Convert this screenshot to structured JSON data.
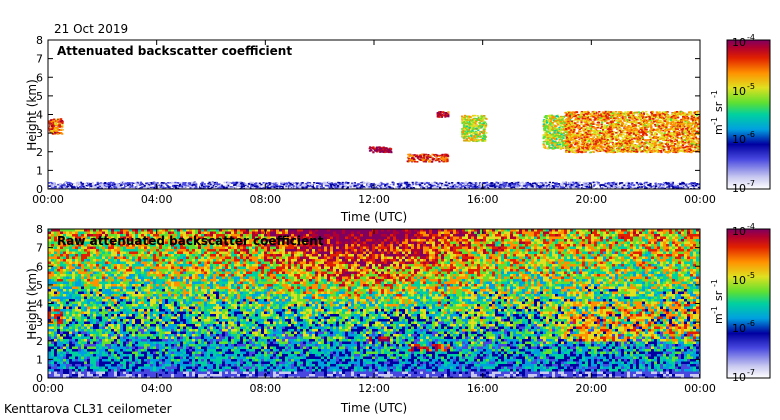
{
  "header": {
    "date": "21 Oct 2019"
  },
  "footer": {
    "site": "Kenttarova CL31 ceilometer"
  },
  "colorscale": [
    "#ffffff",
    "#c8c8f0",
    "#4848e0",
    "#0000a0",
    "#00a0e0",
    "#00d0a0",
    "#60e030",
    "#e0e020",
    "#ff9000",
    "#e02000",
    "#b00030",
    "#800060"
  ],
  "chart_data": [
    {
      "type": "heatmap",
      "title": "Attenuated backscatter coefficient",
      "xlabel": "Time (UTC)",
      "ylabel": "Height (km)",
      "xticks": [
        "00:00",
        "04:00",
        "08:00",
        "12:00",
        "16:00",
        "20:00",
        "00:00"
      ],
      "xlim_hours": [
        0,
        24
      ],
      "ylim": [
        0,
        8
      ],
      "yticks": [
        "0",
        "1",
        "2",
        "3",
        "4",
        "5",
        "6",
        "7",
        "8"
      ],
      "colorbar": {
        "min": "10",
        "min_exp": "-7",
        "max": "10",
        "max_exp": "-4",
        "mid1": "10",
        "mid1_exp": "-6",
        "mid2": "10",
        "mid2_exp": "-5",
        "log": true,
        "unit": "m",
        "unit_exp": "-1",
        "unit2": "sr",
        "unit2_exp": "-1"
      },
      "features": [
        {
          "name": "surface noise layer",
          "t": [
            0,
            24
          ],
          "h": [
            0,
            0.4
          ],
          "level": 0.2
        },
        {
          "name": "early cloud",
          "t": [
            0,
            0.5
          ],
          "h": [
            3.0,
            3.8
          ],
          "level": 0.75
        },
        {
          "name": "cloud layer 12h",
          "t": [
            11.8,
            12.6
          ],
          "h": [
            2.0,
            2.3
          ],
          "level": 0.9
        },
        {
          "name": "cloud layer 14h",
          "t": [
            13.2,
            14.7
          ],
          "h": [
            1.5,
            1.9
          ],
          "level": 0.8
        },
        {
          "name": "cloud 14.5h",
          "t": [
            14.3,
            14.7
          ],
          "h": [
            3.9,
            4.2
          ],
          "level": 0.85
        },
        {
          "name": "falling streak 15-16h",
          "t": [
            15.2,
            16.1
          ],
          "h": [
            2.6,
            4.0
          ],
          "level": 0.6
        },
        {
          "name": "falling streak 18-19h",
          "t": [
            18.2,
            19.2
          ],
          "h": [
            2.2,
            4.0
          ],
          "level": 0.6
        },
        {
          "name": "cloud deck 19-24h",
          "t": [
            19.0,
            24
          ],
          "h": [
            2.0,
            4.2
          ],
          "level": 0.7
        }
      ]
    },
    {
      "type": "heatmap",
      "title": "Raw attenuated backscatter coefficient",
      "xlabel": "Time (UTC)",
      "ylabel": "Height (km)",
      "xticks": [
        "00:00",
        "04:00",
        "08:00",
        "12:00",
        "16:00",
        "20:00",
        "00:00"
      ],
      "xlim_hours": [
        0,
        24
      ],
      "ylim": [
        0,
        8
      ],
      "yticks": [
        "0",
        "1",
        "2",
        "3",
        "4",
        "5",
        "6",
        "7",
        "8"
      ],
      "colorbar": {
        "min": "10",
        "min_exp": "-7",
        "max": "10",
        "max_exp": "-4",
        "mid1": "10",
        "mid1_exp": "-6",
        "mid2": "10",
        "mid2_exp": "-5",
        "log": true,
        "unit": "m",
        "unit_exp": "-1",
        "unit2": "sr",
        "unit2_exp": "-1"
      }
    }
  ]
}
